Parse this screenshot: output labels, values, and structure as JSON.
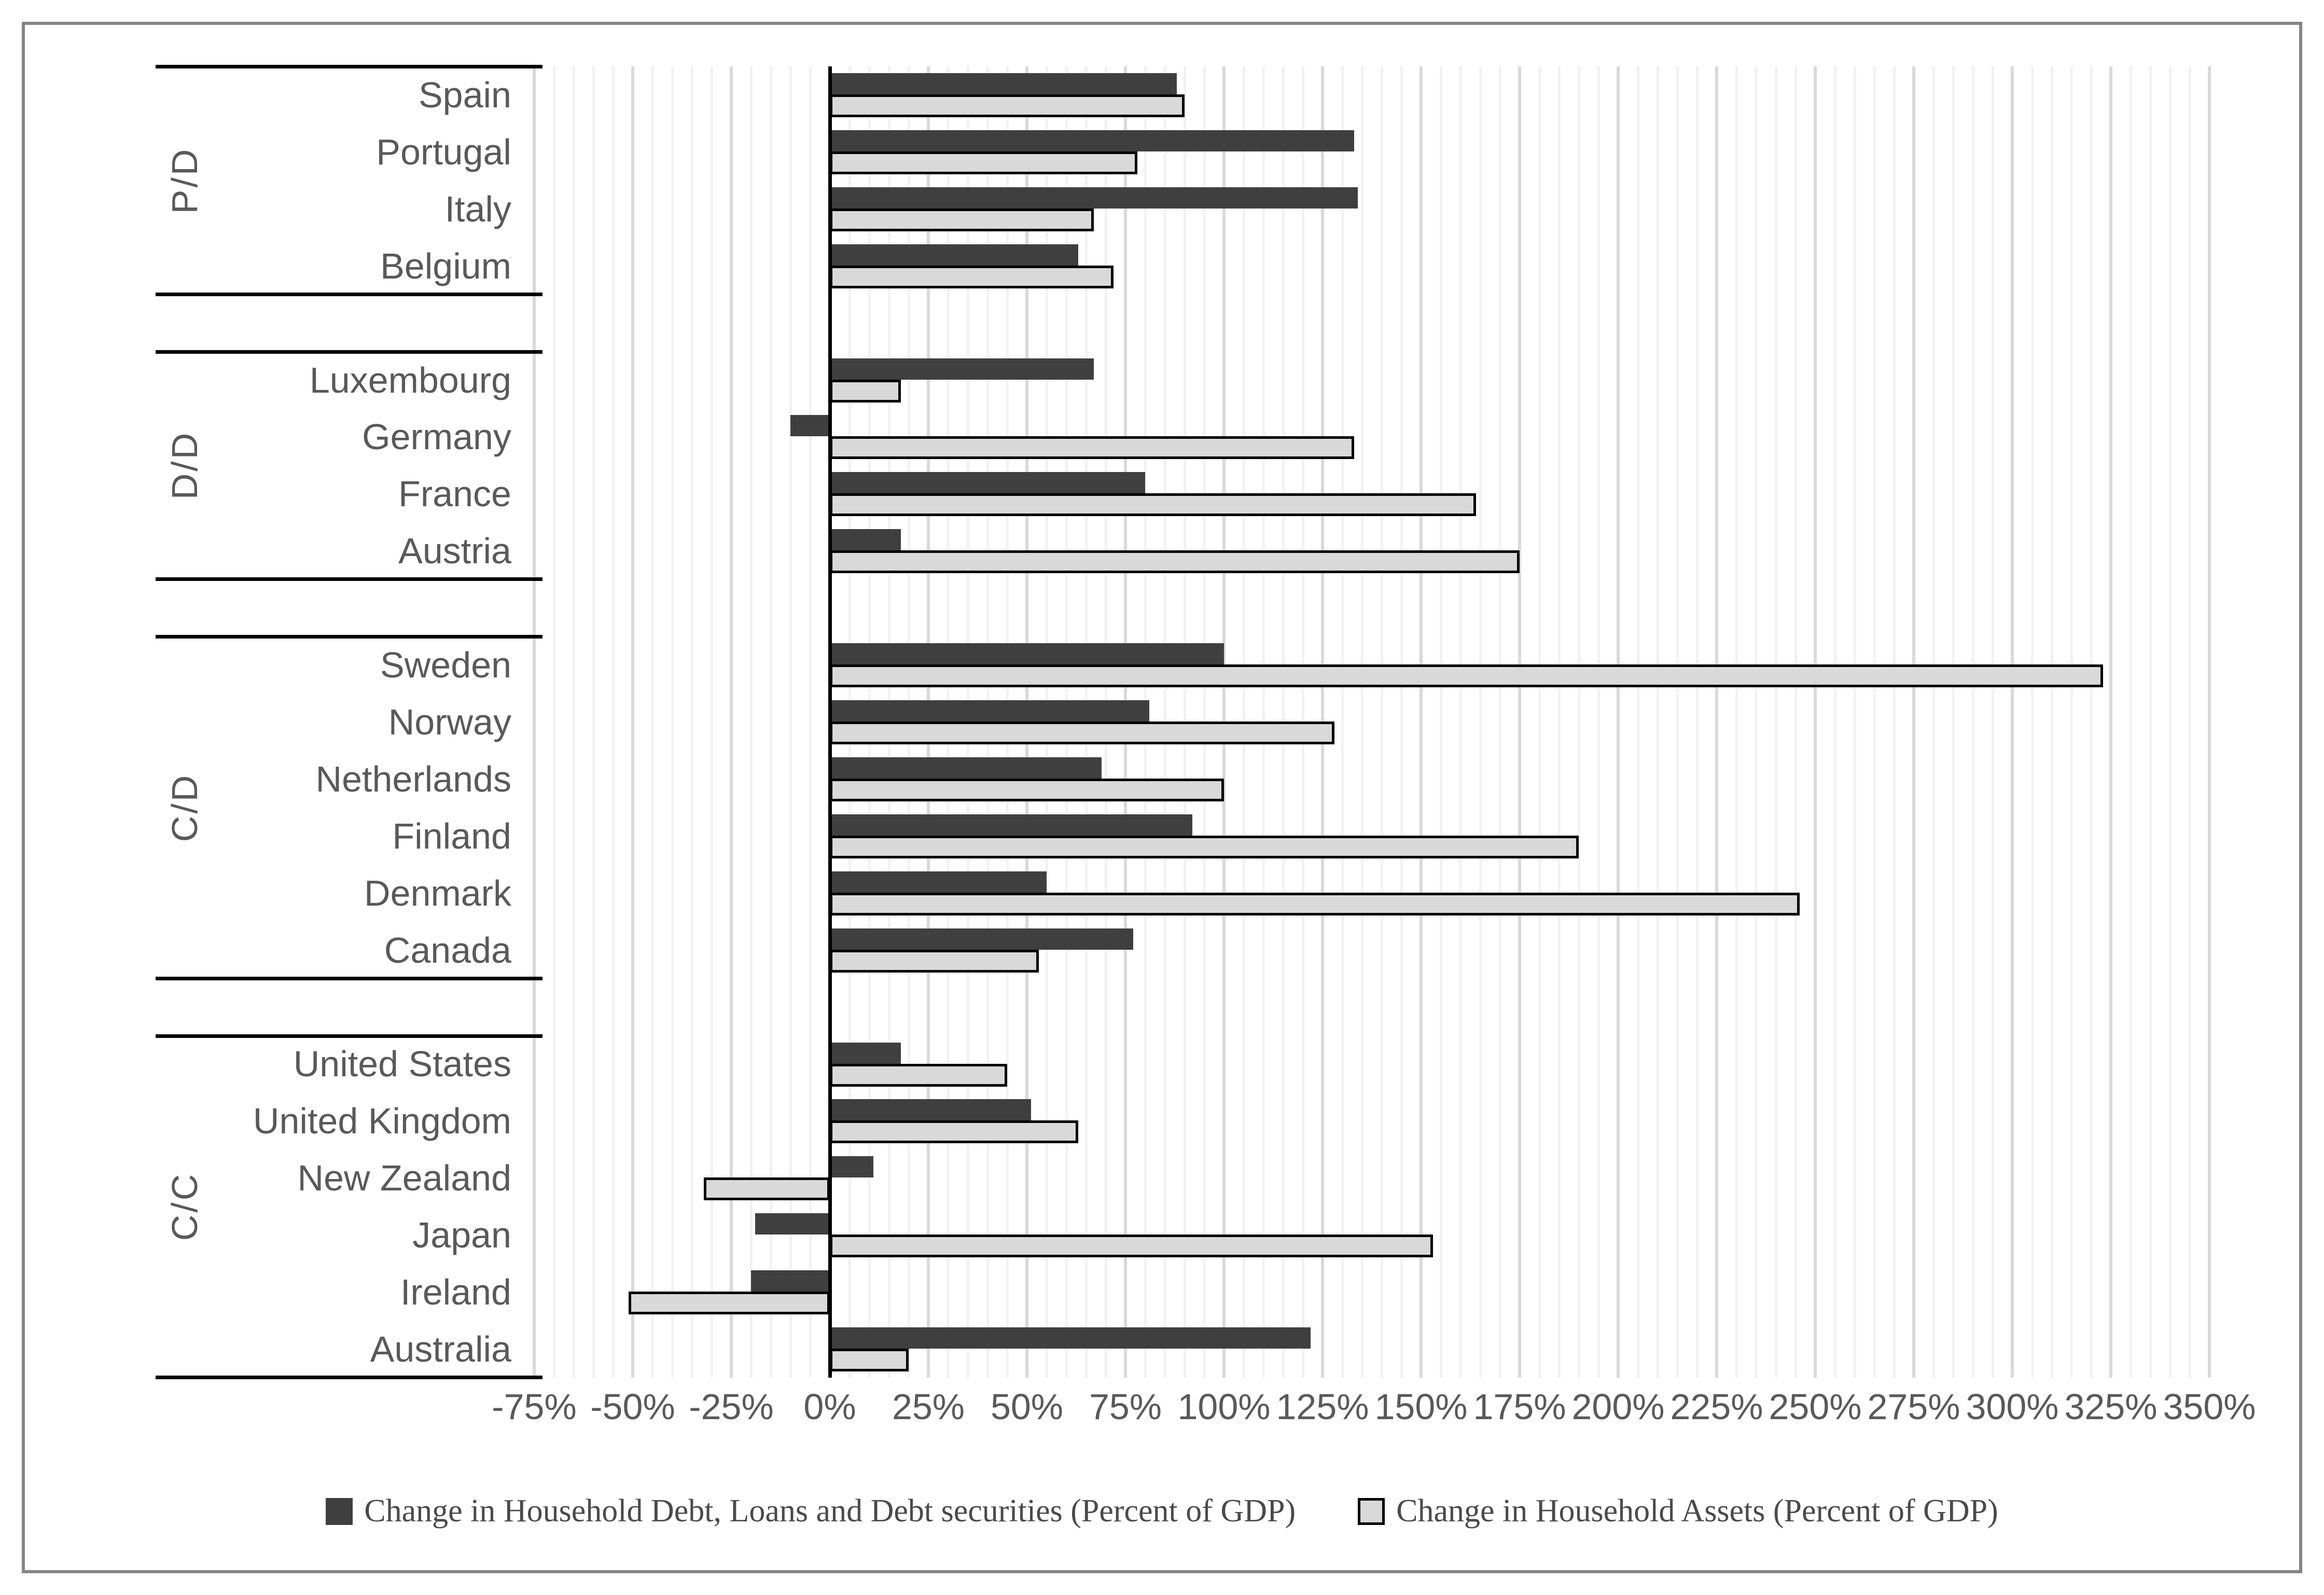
{
  "chart_data": {
    "type": "bar",
    "orientation": "horizontal",
    "x_axis": {
      "min": -75,
      "max": 350,
      "major_step": 25,
      "minor_step": 5,
      "tick_labels": [
        "-75%",
        "-50%",
        "-25%",
        "0%",
        "25%",
        "50%",
        "75%",
        "100%",
        "125%",
        "150%",
        "175%",
        "200%",
        "225%",
        "250%",
        "275%",
        "300%",
        "325%",
        "350%"
      ]
    },
    "series": [
      {
        "name": "Change in Household Debt, Loans and Debt securities (Percent of GDP)",
        "key": "debt",
        "color": "#3f3f3f"
      },
      {
        "name": "Change in Household Assets (Percent of GDP)",
        "key": "assets",
        "color": "#d9d9d9"
      }
    ],
    "groups": [
      {
        "label": "P/D",
        "items": [
          {
            "country": "Spain",
            "debt": 88,
            "assets": 90
          },
          {
            "country": "Portugal",
            "debt": 133,
            "assets": 78
          },
          {
            "country": "Italy",
            "debt": 134,
            "assets": 67
          },
          {
            "country": "Belgium",
            "debt": 63,
            "assets": 72
          }
        ]
      },
      {
        "label": "D/D",
        "items": [
          {
            "country": "Luxembourg",
            "debt": 67,
            "assets": 18
          },
          {
            "country": "Germany",
            "debt": -10,
            "assets": 133
          },
          {
            "country": "France",
            "debt": 80,
            "assets": 164
          },
          {
            "country": "Austria",
            "debt": 18,
            "assets": 175
          }
        ]
      },
      {
        "label": "C/D",
        "items": [
          {
            "country": "Sweden",
            "debt": 100,
            "assets": 323
          },
          {
            "country": "Norway",
            "debt": 81,
            "assets": 128
          },
          {
            "country": "Netherlands",
            "debt": 69,
            "assets": 100
          },
          {
            "country": "Finland",
            "debt": 92,
            "assets": 190
          },
          {
            "country": "Denmark",
            "debt": 55,
            "assets": 246
          },
          {
            "country": "Canada",
            "debt": 77,
            "assets": 53
          }
        ]
      },
      {
        "label": "C/C",
        "items": [
          {
            "country": "United States",
            "debt": 18,
            "assets": 45
          },
          {
            "country": "United Kingdom",
            "debt": 51,
            "assets": 63
          },
          {
            "country": "New Zealand",
            "debt": 11,
            "assets": -32
          },
          {
            "country": "Japan",
            "debt": -19,
            "assets": 153
          },
          {
            "country": "Ireland",
            "debt": -20,
            "assets": -51
          },
          {
            "country": "Australia",
            "debt": 122,
            "assets": 20
          }
        ]
      }
    ]
  },
  "colors": {
    "bar_debt": "#3f3f3f",
    "bar_assets": "#d9d9d9",
    "bar_assets_border": "#000000",
    "axis": "#000000",
    "gridline_minor": "#f2f2f2",
    "gridline_major": "#d9d9d9",
    "label_text": "#595959",
    "legend_text": "#4a4a4a",
    "frame_border": "#858585"
  }
}
